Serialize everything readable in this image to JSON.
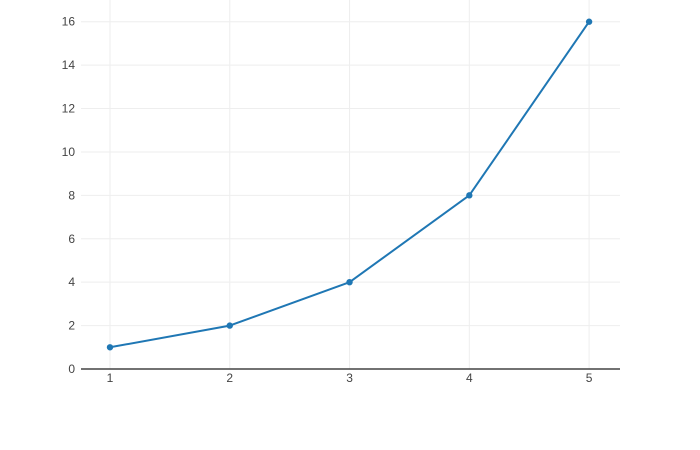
{
  "chart_data": {
    "type": "line",
    "title": "",
    "xlabel": "",
    "ylabel": "",
    "x": [
      1,
      2,
      3,
      4,
      5
    ],
    "values": [
      1,
      2,
      4,
      8,
      16
    ],
    "x_ticks": [
      1,
      2,
      3,
      4,
      5
    ],
    "y_ticks": [
      0,
      2,
      4,
      6,
      8,
      10,
      12,
      14,
      16
    ],
    "xlim": [
      0.758,
      5.258
    ],
    "ylim": [
      0,
      17
    ],
    "grid": true,
    "legend": false,
    "markers": true,
    "colors": {
      "line": "#1f77b4",
      "marker": "#1f77b4",
      "gridline": "#eeeeee",
      "zeroline": "#444444",
      "tick_text": "#444444",
      "background": "#ffffff"
    }
  }
}
